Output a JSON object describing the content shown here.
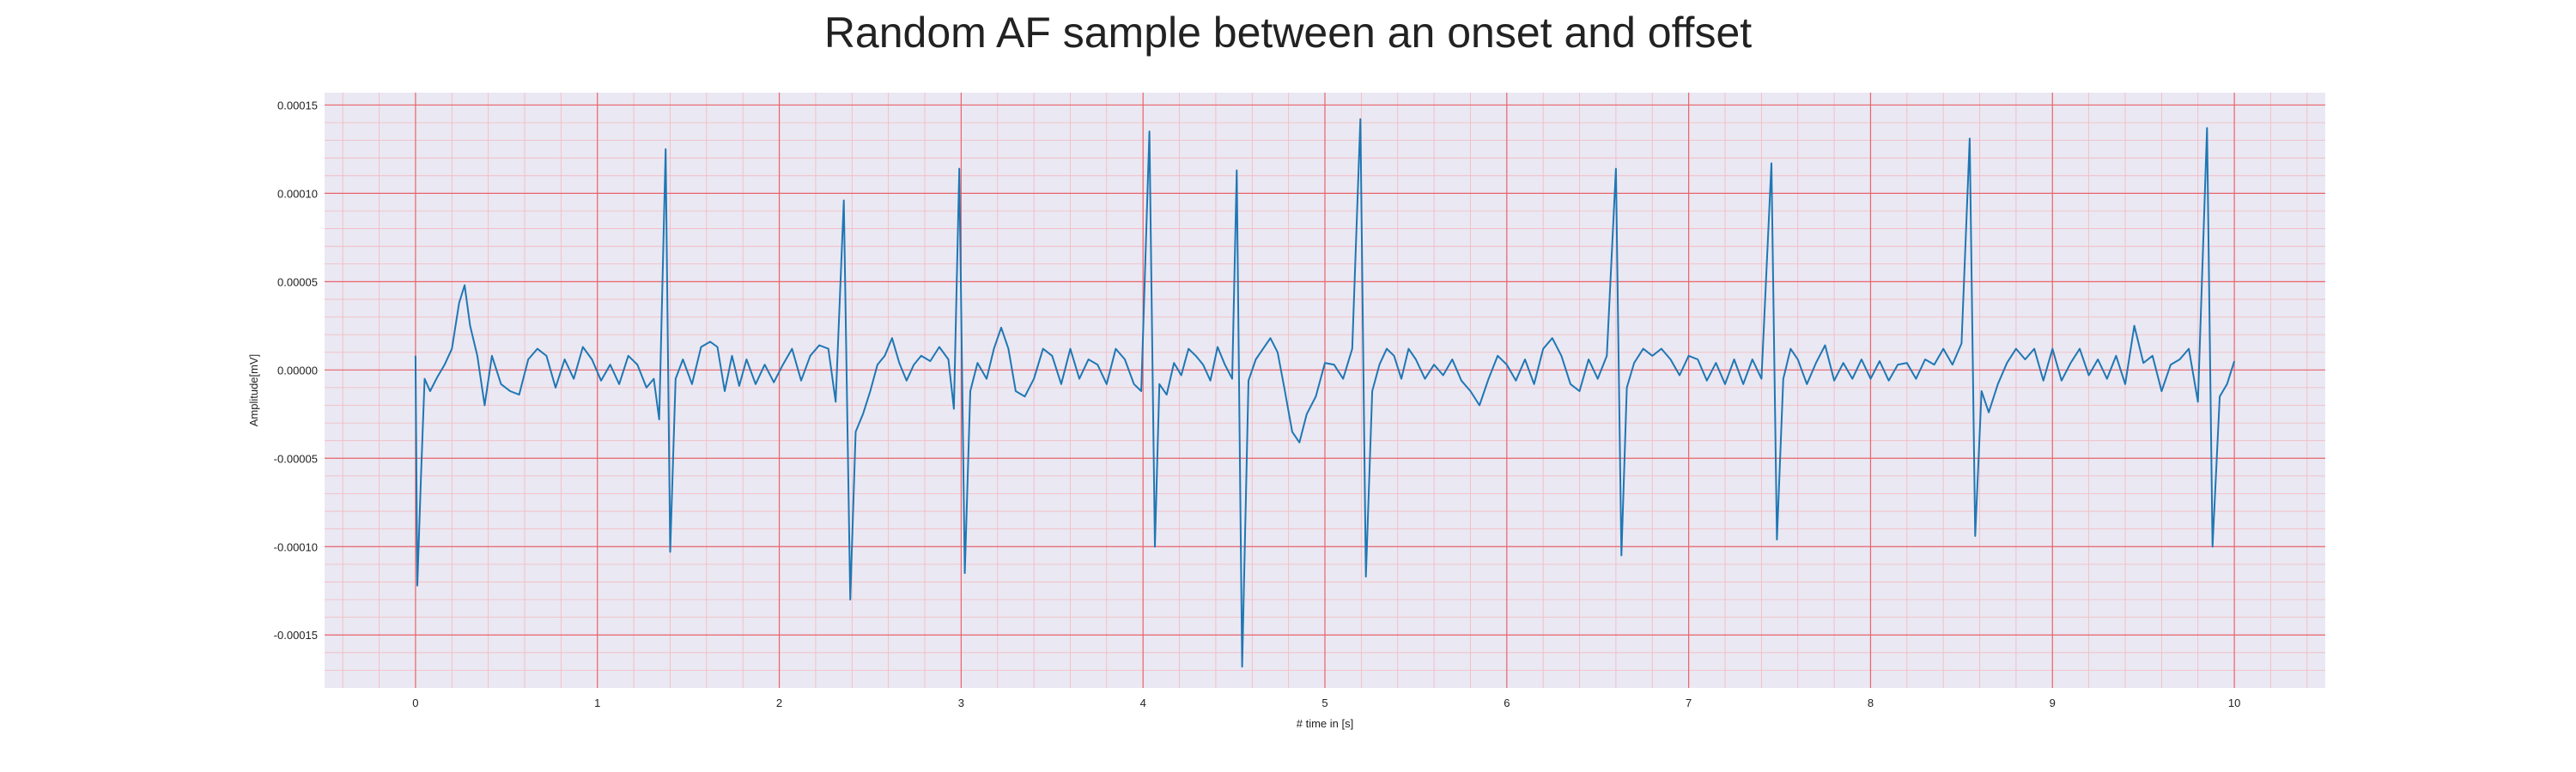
{
  "chart_data": {
    "type": "line",
    "title": "Random AF sample between an onset and offset",
    "xlabel": "# time in [s]",
    "ylabel": "Amplitude[mV]",
    "xlim": [
      -0.5,
      10.5
    ],
    "ylim": [
      -0.00018,
      0.000157
    ],
    "x_ticks": [
      0,
      1,
      2,
      3,
      4,
      5,
      6,
      7,
      8,
      9,
      10
    ],
    "x_tick_labels": [
      "0",
      "1",
      "2",
      "3",
      "4",
      "5",
      "6",
      "7",
      "8",
      "9",
      "10"
    ],
    "y_ticks": [
      0.00015,
      0.0001,
      5e-05,
      0.0,
      -5e-05,
      -0.0001,
      -0.00015
    ],
    "y_tick_labels": [
      "0.00015",
      "0.00010",
      "0.00005",
      "0.00000",
      "-0.00005",
      "-0.00010",
      "-0.00015"
    ],
    "grid": true,
    "minor_grid": true,
    "colors": {
      "line": "#1f77b4",
      "plot_background": "#eae8f2",
      "major_grid": "#e8636b",
      "minor_grid": "#f3b8bf"
    },
    "series": [
      {
        "values": [
          [
            0.0,
            8e-06
          ],
          [
            0.01,
            -0.000122
          ],
          [
            0.03,
            -6e-05
          ],
          [
            0.05,
            -5e-06
          ],
          [
            0.08,
            -1.2e-05
          ],
          [
            0.12,
            -4e-06
          ],
          [
            0.16,
            3e-06
          ],
          [
            0.2,
            1.2e-05
          ],
          [
            0.24,
            3.8e-05
          ],
          [
            0.27,
            4.8e-05
          ],
          [
            0.3,
            2.5e-05
          ],
          [
            0.34,
            8e-06
          ],
          [
            0.38,
            -2e-05
          ],
          [
            0.42,
            8e-06
          ],
          [
            0.47,
            -8e-06
          ],
          [
            0.52,
            -1.2e-05
          ],
          [
            0.57,
            -1.4e-05
          ],
          [
            0.62,
            6e-06
          ],
          [
            0.67,
            1.2e-05
          ],
          [
            0.72,
            8e-06
          ],
          [
            0.77,
            -1e-05
          ],
          [
            0.82,
            6e-06
          ],
          [
            0.87,
            -5e-06
          ],
          [
            0.92,
            1.3e-05
          ],
          [
            0.97,
            6e-06
          ],
          [
            1.02,
            -6e-06
          ],
          [
            1.07,
            3e-06
          ],
          [
            1.12,
            -8e-06
          ],
          [
            1.17,
            8e-06
          ],
          [
            1.22,
            3e-06
          ],
          [
            1.27,
            -1e-05
          ],
          [
            1.31,
            -5e-06
          ],
          [
            1.34,
            -2.8e-05
          ],
          [
            1.375,
            0.000125
          ],
          [
            1.4,
            -0.000103
          ],
          [
            1.43,
            -5e-06
          ],
          [
            1.47,
            6e-06
          ],
          [
            1.52,
            -8e-06
          ],
          [
            1.57,
            1.3e-05
          ],
          [
            1.62,
            1.6e-05
          ],
          [
            1.66,
            1.3e-05
          ],
          [
            1.7,
            -1.2e-05
          ],
          [
            1.74,
            8e-06
          ],
          [
            1.78,
            -9e-06
          ],
          [
            1.82,
            6e-06
          ],
          [
            1.87,
            -8e-06
          ],
          [
            1.92,
            3e-06
          ],
          [
            1.97,
            -7e-06
          ],
          [
            2.02,
            3e-06
          ],
          [
            2.07,
            1.2e-05
          ],
          [
            2.12,
            -6e-06
          ],
          [
            2.17,
            8e-06
          ],
          [
            2.22,
            1.4e-05
          ],
          [
            2.27,
            1.2e-05
          ],
          [
            2.31,
            -1.8e-05
          ],
          [
            2.355,
            9.6e-05
          ],
          [
            2.39,
            -0.00013
          ],
          [
            2.42,
            -3.5e-05
          ],
          [
            2.46,
            -2.5e-05
          ],
          [
            2.5,
            -1.2e-05
          ],
          [
            2.54,
            3e-06
          ],
          [
            2.58,
            8e-06
          ],
          [
            2.62,
            1.8e-05
          ],
          [
            2.66,
            4e-06
          ],
          [
            2.7,
            -6e-06
          ],
          [
            2.74,
            3e-06
          ],
          [
            2.78,
            8e-06
          ],
          [
            2.83,
            5e-06
          ],
          [
            2.88,
            1.3e-05
          ],
          [
            2.93,
            6e-06
          ],
          [
            2.96,
            -2.2e-05
          ],
          [
            2.99,
            0.000114
          ],
          [
            3.02,
            -0.000115
          ],
          [
            3.05,
            -1.2e-05
          ],
          [
            3.09,
            4e-06
          ],
          [
            3.14,
            -5e-06
          ],
          [
            3.18,
            1.2e-05
          ],
          [
            3.22,
            2.4e-05
          ],
          [
            3.26,
            1.2e-05
          ],
          [
            3.3,
            -1.2e-05
          ],
          [
            3.35,
            -1.5e-05
          ],
          [
            3.4,
            -5e-06
          ],
          [
            3.45,
            1.2e-05
          ],
          [
            3.5,
            8e-06
          ],
          [
            3.55,
            -8e-06
          ],
          [
            3.6,
            1.2e-05
          ],
          [
            3.65,
            -5e-06
          ],
          [
            3.7,
            6e-06
          ],
          [
            3.75,
            3e-06
          ],
          [
            3.8,
            -8e-06
          ],
          [
            3.85,
            1.2e-05
          ],
          [
            3.9,
            6e-06
          ],
          [
            3.95,
            -8e-06
          ],
          [
            3.99,
            -1.2e-05
          ],
          [
            4.035,
            0.000135
          ],
          [
            4.065,
            -0.0001
          ],
          [
            4.09,
            -8e-06
          ],
          [
            4.13,
            -1.4e-05
          ],
          [
            4.17,
            4e-06
          ],
          [
            4.21,
            -3e-06
          ],
          [
            4.25,
            1.2e-05
          ],
          [
            4.29,
            8e-06
          ],
          [
            4.33,
            3e-06
          ],
          [
            4.37,
            -6e-06
          ],
          [
            4.41,
            1.3e-05
          ],
          [
            4.45,
            3e-06
          ],
          [
            4.49,
            -5e-06
          ],
          [
            4.515,
            0.000113
          ],
          [
            4.545,
            -0.000168
          ],
          [
            4.58,
            -6e-06
          ],
          [
            4.62,
            6e-06
          ],
          [
            4.66,
            1.2e-05
          ],
          [
            4.7,
            1.8e-05
          ],
          [
            4.74,
            1e-05
          ],
          [
            4.78,
            -1.2e-05
          ],
          [
            4.82,
            -3.5e-05
          ],
          [
            4.86,
            -4.1e-05
          ],
          [
            4.9,
            -2.5e-05
          ],
          [
            4.95,
            -1.5e-05
          ],
          [
            5.0,
            4e-06
          ],
          [
            5.05,
            3e-06
          ],
          [
            5.1,
            -5e-06
          ],
          [
            5.15,
            1.2e-05
          ],
          [
            5.195,
            0.000142
          ],
          [
            5.225,
            -0.000117
          ],
          [
            5.26,
            -1.2e-05
          ],
          [
            5.3,
            3e-06
          ],
          [
            5.34,
            1.2e-05
          ],
          [
            5.38,
            8e-06
          ],
          [
            5.42,
            -5e-06
          ],
          [
            5.46,
            1.2e-05
          ],
          [
            5.5,
            6e-06
          ],
          [
            5.55,
            -5e-06
          ],
          [
            5.6,
            3e-06
          ],
          [
            5.65,
            -3e-06
          ],
          [
            5.7,
            6e-06
          ],
          [
            5.75,
            -6e-06
          ],
          [
            5.8,
            -1.2e-05
          ],
          [
            5.85,
            -2e-05
          ],
          [
            5.9,
            -5e-06
          ],
          [
            5.95,
            8e-06
          ],
          [
            6.0,
            3e-06
          ],
          [
            6.05,
            -6e-06
          ],
          [
            6.1,
            6e-06
          ],
          [
            6.15,
            -8e-06
          ],
          [
            6.2,
            1.2e-05
          ],
          [
            6.25,
            1.8e-05
          ],
          [
            6.3,
            8e-06
          ],
          [
            6.35,
            -8e-06
          ],
          [
            6.4,
            -1.2e-05
          ],
          [
            6.45,
            6e-06
          ],
          [
            6.5,
            -5e-06
          ],
          [
            6.55,
            8e-06
          ],
          [
            6.6,
            0.000114
          ],
          [
            6.63,
            -0.000105
          ],
          [
            6.66,
            -1e-05
          ],
          [
            6.7,
            4e-06
          ],
          [
            6.75,
            1.2e-05
          ],
          [
            6.8,
            8e-06
          ],
          [
            6.85,
            1.2e-05
          ],
          [
            6.9,
            6e-06
          ],
          [
            6.95,
            -3e-06
          ],
          [
            7.0,
            8e-06
          ],
          [
            7.05,
            6e-06
          ],
          [
            7.1,
            -6e-06
          ],
          [
            7.15,
            4e-06
          ],
          [
            7.2,
            -8e-06
          ],
          [
            7.25,
            6e-06
          ],
          [
            7.3,
            -8e-06
          ],
          [
            7.35,
            6e-06
          ],
          [
            7.4,
            -5e-06
          ],
          [
            7.455,
            0.000117
          ],
          [
            7.485,
            -9.6e-05
          ],
          [
            7.52,
            -5e-06
          ],
          [
            7.56,
            1.2e-05
          ],
          [
            7.6,
            6e-06
          ],
          [
            7.65,
            -8e-06
          ],
          [
            7.7,
            4e-06
          ],
          [
            7.75,
            1.4e-05
          ],
          [
            7.8,
            -6e-06
          ],
          [
            7.85,
            4e-06
          ],
          [
            7.9,
            -5e-06
          ],
          [
            7.95,
            6e-06
          ],
          [
            8.0,
            -5e-06
          ],
          [
            8.05,
            5e-06
          ],
          [
            8.1,
            -6e-06
          ],
          [
            8.15,
            3e-06
          ],
          [
            8.2,
            4e-06
          ],
          [
            8.25,
            -5e-06
          ],
          [
            8.3,
            6e-06
          ],
          [
            8.35,
            3e-06
          ],
          [
            8.4,
            1.2e-05
          ],
          [
            8.45,
            3e-06
          ],
          [
            8.5,
            1.5e-05
          ],
          [
            8.545,
            0.000131
          ],
          [
            8.575,
            -9.4e-05
          ],
          [
            8.61,
            -1.2e-05
          ],
          [
            8.65,
            -2.4e-05
          ],
          [
            8.7,
            -8e-06
          ],
          [
            8.75,
            4e-06
          ],
          [
            8.8,
            1.2e-05
          ],
          [
            8.85,
            6e-06
          ],
          [
            8.9,
            1.2e-05
          ],
          [
            8.95,
            -6e-06
          ],
          [
            9.0,
            1.2e-05
          ],
          [
            9.05,
            -6e-06
          ],
          [
            9.1,
            4e-06
          ],
          [
            9.15,
            1.2e-05
          ],
          [
            9.2,
            -3e-06
          ],
          [
            9.25,
            6e-06
          ],
          [
            9.3,
            -5e-06
          ],
          [
            9.35,
            8e-06
          ],
          [
            9.4,
            -8e-06
          ],
          [
            9.45,
            2.5e-05
          ],
          [
            9.5,
            4e-06
          ],
          [
            9.55,
            8e-06
          ],
          [
            9.6,
            -1.2e-05
          ],
          [
            9.65,
            3e-06
          ],
          [
            9.7,
            6e-06
          ],
          [
            9.75,
            1.2e-05
          ],
          [
            9.8,
            -1.8e-05
          ],
          [
            9.85,
            0.000137
          ],
          [
            9.88,
            -0.0001
          ],
          [
            9.92,
            -1.5e-05
          ],
          [
            9.96,
            -8e-06
          ],
          [
            10.0,
            5e-06
          ]
        ]
      }
    ]
  }
}
